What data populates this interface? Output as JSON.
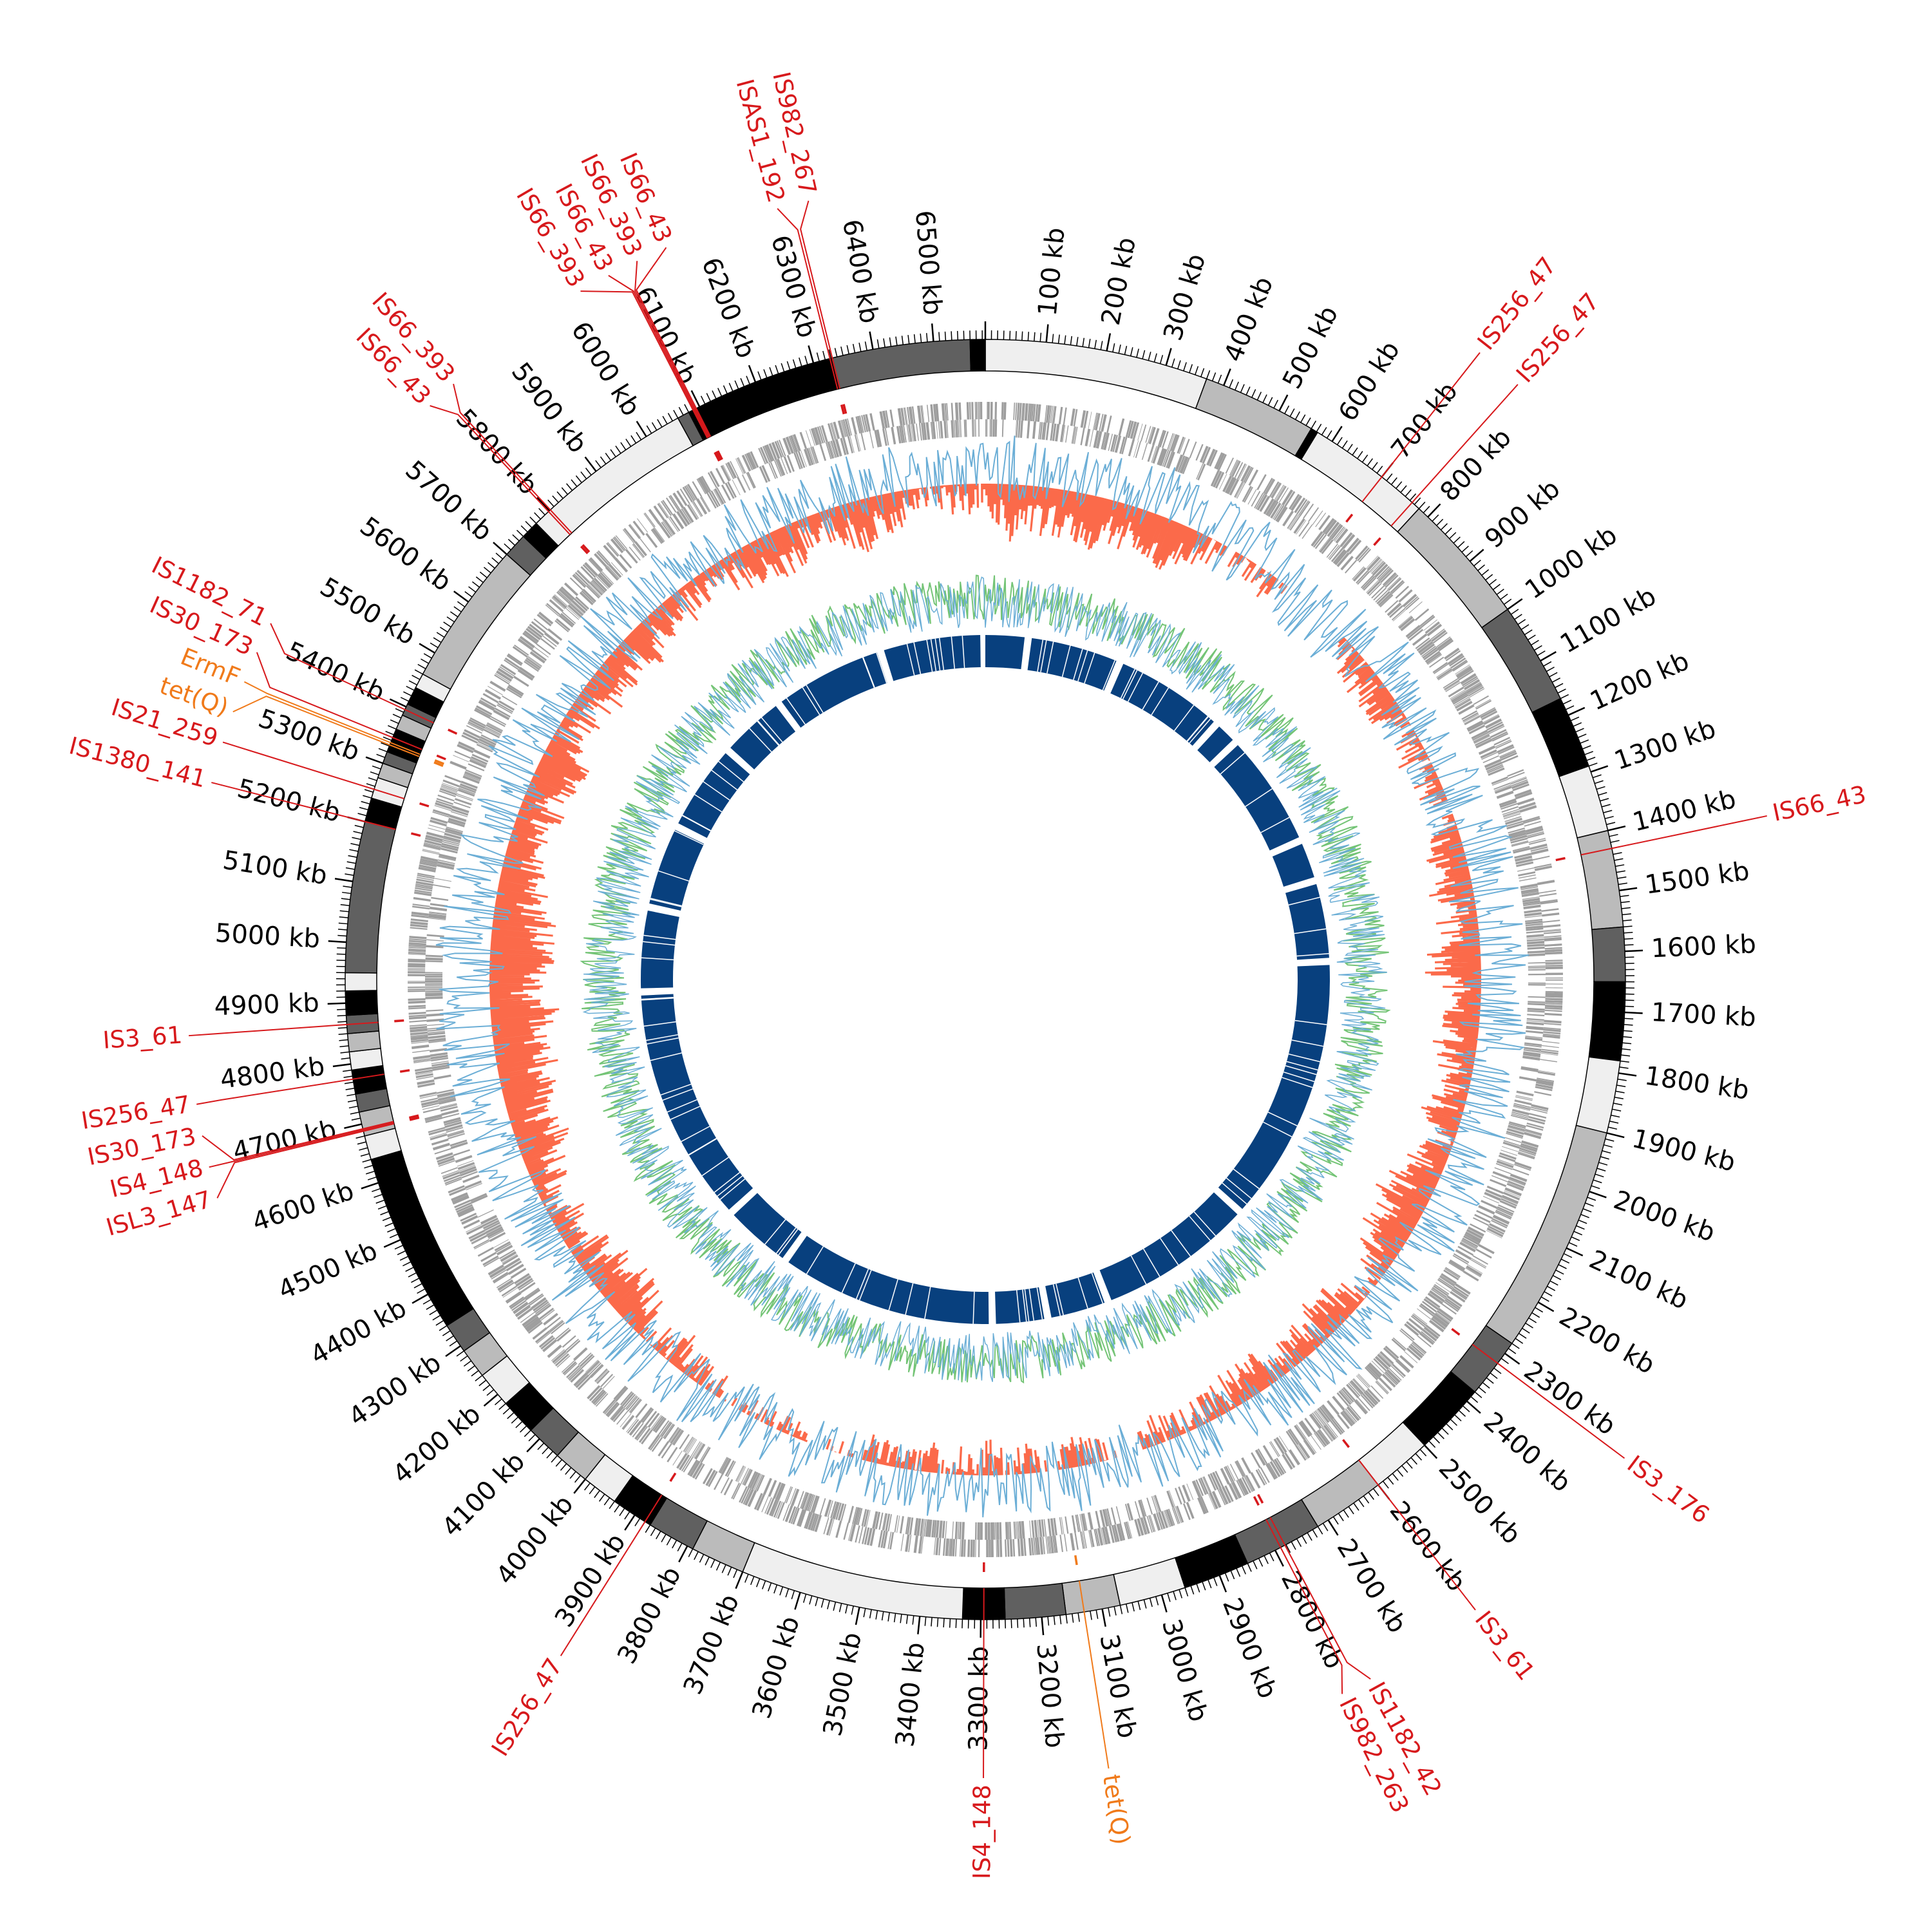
{
  "genome": {
    "total_kb": 6585,
    "tick_major_kb": 100,
    "tick_minor_kb": 10
  },
  "tick_labels": [
    "100 kb",
    "200 kb",
    "300 kb",
    "400 kb",
    "500 kb",
    "600 kb",
    "700 kb",
    "800 kb",
    "900 kb",
    "1000 kb",
    "1100 kb",
    "1200 kb",
    "1300 kb",
    "1400 kb",
    "1500 kb",
    "1600 kb",
    "1700 kb",
    "1800 kb",
    "1900 kb",
    "2000 kb",
    "2100 kb",
    "2200 kb",
    "2300 kb",
    "2400 kb",
    "2500 kb",
    "2600 kb",
    "2700 kb",
    "2800 kb",
    "2900 kb",
    "3000 kb",
    "3100 kb",
    "3200 kb",
    "3300 kb",
    "3400 kb",
    "3500 kb",
    "3600 kb",
    "3700 kb",
    "3800 kb",
    "3900 kb",
    "4000 kb",
    "4100 kb",
    "4200 kb",
    "4300 kb",
    "4400 kb",
    "4500 kb",
    "4600 kb",
    "4700 kb",
    "4800 kb",
    "4900 kb",
    "5000 kb",
    "5100 kb",
    "5200 kb",
    "5300 kb",
    "5400 kb",
    "5500 kb",
    "5600 kb",
    "5700 kb",
    "5800 kb",
    "5900 kb",
    "6000 kb",
    "6100 kb",
    "6200 kb",
    "6300 kb",
    "6400 kb",
    "6500 kb"
  ],
  "contigs": [
    {
      "start": 0,
      "end": 370,
      "shade": "#efefef"
    },
    {
      "start": 370,
      "end": 560,
      "shade": "#bbbbbb"
    },
    {
      "start": 560,
      "end": 572,
      "shade": "#000000"
    },
    {
      "start": 572,
      "end": 780,
      "shade": "#efefef"
    },
    {
      "start": 780,
      "end": 1000,
      "shade": "#bbbbbb"
    },
    {
      "start": 1000,
      "end": 1170,
      "shade": "#606060"
    },
    {
      "start": 1170,
      "end": 1290,
      "shade": "#000000"
    },
    {
      "start": 1290,
      "end": 1400,
      "shade": "#efefef"
    },
    {
      "start": 1400,
      "end": 1560,
      "shade": "#bbbbbb"
    },
    {
      "start": 1560,
      "end": 1650,
      "shade": "#606060"
    },
    {
      "start": 1650,
      "end": 1780,
      "shade": "#000000"
    },
    {
      "start": 1780,
      "end": 1900,
      "shade": "#efefef"
    },
    {
      "start": 1900,
      "end": 2280,
      "shade": "#bbbbbb"
    },
    {
      "start": 2280,
      "end": 2380,
      "shade": "#606060"
    },
    {
      "start": 2380,
      "end": 2500,
      "shade": "#000000"
    },
    {
      "start": 2500,
      "end": 2600,
      "shade": "#efefef"
    },
    {
      "start": 2600,
      "end": 2720,
      "shade": "#bbbbbb"
    },
    {
      "start": 2720,
      "end": 2850,
      "shade": "#606060"
    },
    {
      "start": 2850,
      "end": 2960,
      "shade": "#000000"
    },
    {
      "start": 2960,
      "end": 3070,
      "shade": "#efefef"
    },
    {
      "start": 3070,
      "end": 3160,
      "shade": "#bbbbbb"
    },
    {
      "start": 3160,
      "end": 3260,
      "shade": "#606060"
    },
    {
      "start": 3260,
      "end": 3330,
      "shade": "#000000"
    },
    {
      "start": 3330,
      "end": 3700,
      "shade": "#efefef"
    },
    {
      "start": 3700,
      "end": 3790,
      "shade": "#bbbbbb"
    },
    {
      "start": 3790,
      "end": 3870,
      "shade": "#606060"
    },
    {
      "start": 3870,
      "end": 3940,
      "shade": "#000000"
    },
    {
      "start": 3940,
      "end": 4000,
      "shade": "#efefef"
    },
    {
      "start": 4000,
      "end": 4060,
      "shade": "#bbbbbb"
    },
    {
      "start": 4060,
      "end": 4120,
      "shade": "#606060"
    },
    {
      "start": 4120,
      "end": 4180,
      "shade": "#000000"
    },
    {
      "start": 4180,
      "end": 4240,
      "shade": "#efefef"
    },
    {
      "start": 4240,
      "end": 4290,
      "shade": "#bbbbbb"
    },
    {
      "start": 4290,
      "end": 4340,
      "shade": "#606060"
    },
    {
      "start": 4340,
      "end": 4640,
      "shade": "#000000"
    },
    {
      "start": 4640,
      "end": 4680,
      "shade": "#efefef"
    },
    {
      "start": 4680,
      "end": 4720,
      "shade": "#bbbbbb"
    },
    {
      "start": 4720,
      "end": 4750,
      "shade": "#606060"
    },
    {
      "start": 4750,
      "end": 4790,
      "shade": "#000000"
    },
    {
      "start": 4790,
      "end": 4820,
      "shade": "#efefef"
    },
    {
      "start": 4820,
      "end": 4850,
      "shade": "#bbbbbb"
    },
    {
      "start": 4850,
      "end": 4880,
      "shade": "#606060"
    },
    {
      "start": 4880,
      "end": 4920,
      "shade": "#000000"
    },
    {
      "start": 4920,
      "end": 4950,
      "shade": "#efefef"
    },
    {
      "start": 4950,
      "end": 5200,
      "shade": "#606060"
    },
    {
      "start": 5200,
      "end": 5240,
      "shade": "#000000"
    },
    {
      "start": 5240,
      "end": 5275,
      "shade": "#efefef"
    },
    {
      "start": 5275,
      "end": 5300,
      "shade": "#bbbbbb"
    },
    {
      "start": 5300,
      "end": 5320,
      "shade": "#606060"
    },
    {
      "start": 5320,
      "end": 5360,
      "shade": "#000000"
    },
    {
      "start": 5360,
      "end": 5385,
      "shade": "#bbbbbb"
    },
    {
      "start": 5385,
      "end": 5405,
      "shade": "#606060"
    },
    {
      "start": 5405,
      "end": 5435,
      "shade": "#000000"
    },
    {
      "start": 5435,
      "end": 5460,
      "shade": "#efefef"
    },
    {
      "start": 5460,
      "end": 5700,
      "shade": "#bbbbbb"
    },
    {
      "start": 5700,
      "end": 5740,
      "shade": "#606060"
    },
    {
      "start": 5740,
      "end": 5770,
      "shade": "#000000"
    },
    {
      "start": 5770,
      "end": 6060,
      "shade": "#efefef"
    },
    {
      "start": 6060,
      "end": 6080,
      "shade": "#606060"
    },
    {
      "start": 6080,
      "end": 6100,
      "shade": "#000000"
    },
    {
      "start": 6100,
      "end": 6330,
      "shade": "#000000"
    },
    {
      "start": 6330,
      "end": 6560,
      "shade": "#606060"
    },
    {
      "start": 6560,
      "end": 6585,
      "shade": "#000000"
    }
  ],
  "mobile_elements": [
    {
      "label": "IS256_47",
      "position_kb": 700,
      "kind": "IS"
    },
    {
      "label": "IS256_47",
      "position_kb": 765,
      "kind": "IS"
    },
    {
      "label": "IS66_43",
      "position_kb": 1430,
      "kind": "IS"
    },
    {
      "label": "IS3_176",
      "position_kb": 2320,
      "kind": "IS"
    },
    {
      "label": "IS3_61",
      "position_kb": 2600,
      "kind": "IS"
    },
    {
      "label": "IS1182_42",
      "position_kb": 2782,
      "kind": "IS"
    },
    {
      "label": "IS982_263",
      "position_kb": 2790,
      "kind": "IS"
    },
    {
      "label": "tet(Q)",
      "position_kb": 3130,
      "kind": "ARG"
    },
    {
      "label": "IS4_148",
      "position_kb": 3295,
      "kind": "IS"
    },
    {
      "label": "IS256_47",
      "position_kb": 3880,
      "kind": "IS"
    },
    {
      "label": "ISL3_147",
      "position_kb": 4688,
      "kind": "IS"
    },
    {
      "label": "IS4_148",
      "position_kb": 4690,
      "kind": "IS"
    },
    {
      "label": "IS30_173",
      "position_kb": 4692,
      "kind": "IS"
    },
    {
      "label": "IS256_47",
      "position_kb": 4775,
      "kind": "IS"
    },
    {
      "label": "IS3_61",
      "position_kb": 4865,
      "kind": "IS"
    },
    {
      "label": "IS1380_141",
      "position_kb": 5200,
      "kind": "IS"
    },
    {
      "label": "IS21_259",
      "position_kb": 5255,
      "kind": "IS"
    },
    {
      "label": "tet(Q)",
      "position_kb": 5332,
      "kind": "ARG"
    },
    {
      "label": "ErmF",
      "position_kb": 5336,
      "kind": "ARG"
    },
    {
      "label": "IS30_173",
      "position_kb": 5345,
      "kind": "IS"
    },
    {
      "label": "IS1182_71",
      "position_kb": 5395,
      "kind": "IS"
    },
    {
      "label": "IS66_43",
      "position_kb": 5798,
      "kind": "IS"
    },
    {
      "label": "IS66_393",
      "position_kb": 5802,
      "kind": "IS"
    },
    {
      "label": "IS66_393",
      "position_kb": 6088,
      "kind": "IS"
    },
    {
      "label": "IS66_43",
      "position_kb": 6090,
      "kind": "IS"
    },
    {
      "label": "IS66_393",
      "position_kb": 6092,
      "kind": "IS"
    },
    {
      "label": "IS66_43",
      "position_kb": 6094,
      "kind": "IS"
    },
    {
      "label": "ISAS1_192",
      "position_kb": 6328,
      "kind": "IS"
    },
    {
      "label": "IS982_267",
      "position_kb": 6332,
      "kind": "IS"
    }
  ],
  "inner_ring_gaps_kb": [
    130,
    420,
    770,
    850,
    1210,
    1340,
    1590,
    2420,
    2910,
    3100,
    3270,
    3940,
    4160,
    4900,
    5160,
    5420,
    5700,
    5910,
    6260
  ],
  "colors": {
    "is_element": "#d7191c",
    "resistance_gene": "#f07a1a",
    "gene_track": "#9e9e9e",
    "skew_negative": "#fb6a4a",
    "skew_positive": "#6baed6",
    "gc_content": "#74c476",
    "gc_line": "#6baed6",
    "inner_ring": "#08407e"
  }
}
